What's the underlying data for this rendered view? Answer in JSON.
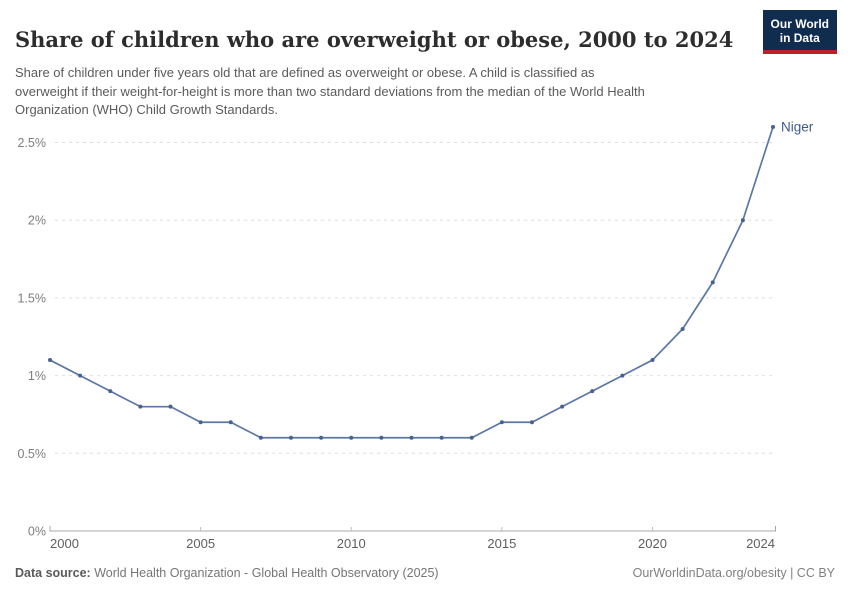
{
  "header": {
    "title": "Share of children who are overweight or obese, 2000 to 2024",
    "subtitle_lines": [
      "Share of children under five years old that are defined as overweight or obese. A child is classified as",
      "overweight if their weight-for-height is more than two standard deviations from the median of the World Health",
      "Organization (WHO) Child Growth Standards."
    ],
    "logo": {
      "line1": "Our World",
      "line2": "in Data",
      "bg_color": "#102d50",
      "bar_color": "#be2026"
    }
  },
  "chart_data": {
    "type": "line",
    "title": "Share of children who are overweight or obese, 2000 to 2024",
    "entity_label": "Niger",
    "unit": "%",
    "x": [
      2000,
      2001,
      2002,
      2003,
      2004,
      2005,
      2006,
      2007,
      2008,
      2009,
      2010,
      2011,
      2012,
      2013,
      2014,
      2015,
      2016,
      2017,
      2018,
      2019,
      2020,
      2021,
      2022,
      2023,
      2024
    ],
    "series": [
      {
        "name": "Niger",
        "values": [
          1.1,
          1.0,
          0.9,
          0.8,
          0.8,
          0.7,
          0.7,
          0.6,
          0.6,
          0.6,
          0.6,
          0.6,
          0.6,
          0.6,
          0.6,
          0.7,
          0.7,
          0.8,
          0.9,
          1.0,
          1.1,
          1.3,
          1.6,
          2.0,
          2.6
        ]
      }
    ],
    "xlim": [
      2000,
      2024
    ],
    "ylim": [
      0,
      2.6
    ],
    "y_ticks": [
      {
        "value": 0,
        "label": "0%"
      },
      {
        "value": 0.5,
        "label": "0.5%"
      },
      {
        "value": 1,
        "label": "1%"
      },
      {
        "value": 1.5,
        "label": "1.5%"
      },
      {
        "value": 2,
        "label": "2%"
      },
      {
        "value": 2.5,
        "label": "2.5%"
      }
    ],
    "x_ticks": [
      {
        "value": 2000,
        "label": "2000"
      },
      {
        "value": 2005,
        "label": "2005"
      },
      {
        "value": 2010,
        "label": "2010"
      },
      {
        "value": 2015,
        "label": "2015"
      },
      {
        "value": 2020,
        "label": "2020"
      },
      {
        "value": 2024,
        "label": "2024"
      }
    ],
    "grid": "dashed-horizontal",
    "legend_position": "end-of-line",
    "line_color": "#5b77a5",
    "point_color": "#47628f",
    "label_color": "#3d5a8f",
    "gridline_color": "#dedede",
    "axis_color": "#a8a8a8",
    "y_tick_label_color": "#7e7e7e",
    "x_tick_label_color": "#5f5f5f"
  },
  "footer": {
    "datasource_label": "Data source:",
    "datasource": "World Health Organization - Global Health Observatory (2025)",
    "link": "OurWorldinData.org/obesity | CC BY"
  }
}
